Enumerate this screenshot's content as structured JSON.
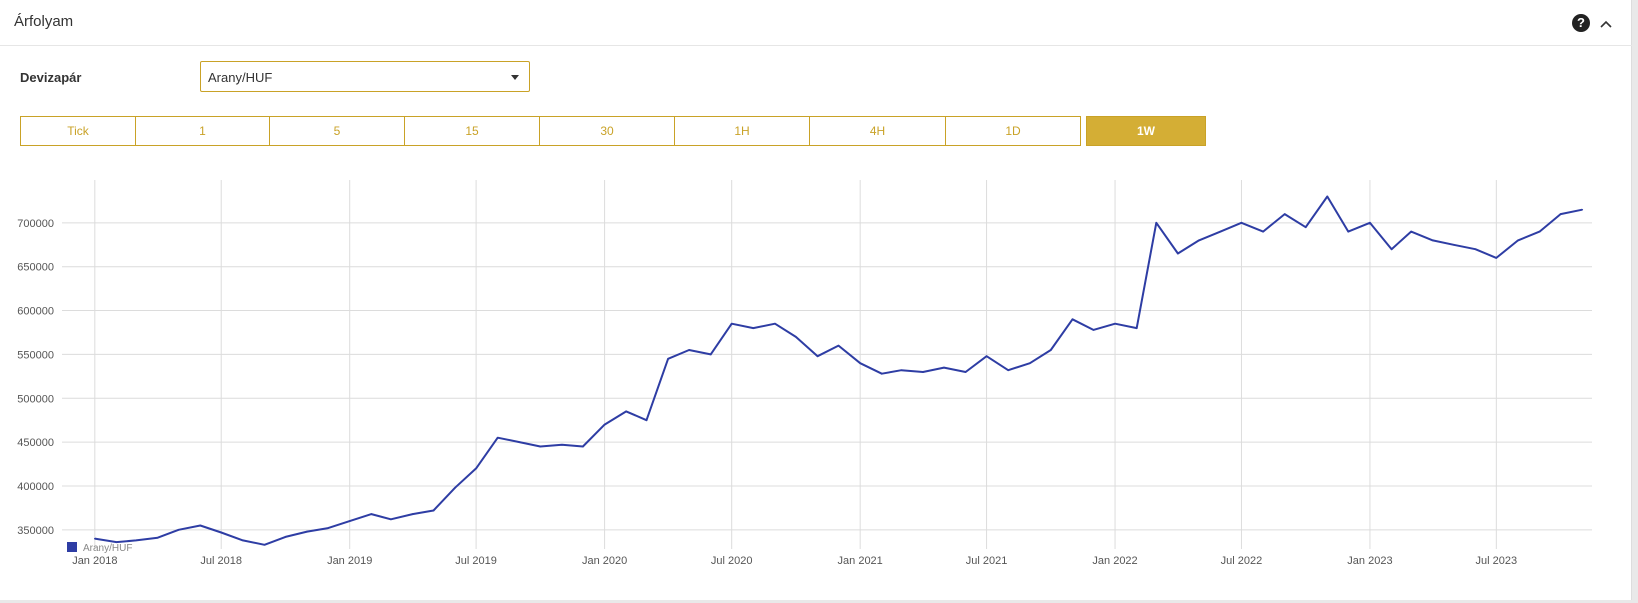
{
  "header": {
    "title": "Árfolyam",
    "help_icon": "question-circle-icon",
    "collapse_icon": "chevron-up-icon"
  },
  "pair": {
    "label": "Devizapár",
    "selected": "Arany/HUF"
  },
  "timeframes": {
    "items": [
      "Tick",
      "1",
      "5",
      "15",
      "30",
      "1H",
      "4H",
      "1D",
      "1W"
    ],
    "active": "1W"
  },
  "colors": {
    "accent": "#d4ae35",
    "line": "#2e3da4"
  },
  "chart_data": {
    "type": "line",
    "title": "",
    "xlabel": "",
    "ylabel": "",
    "x_ticks": [
      "Jan 2018",
      "Jul 2018",
      "Jan 2019",
      "Jul 2019",
      "Jan 2020",
      "Jul 2020",
      "Jan 2021",
      "Jul 2021",
      "Jan 2022",
      "Jul 2022",
      "Jan 2023",
      "Jul 2023"
    ],
    "y_ticks": [
      "350000",
      "400000",
      "450000",
      "500000",
      "550000",
      "600000",
      "650000",
      "700000"
    ],
    "ylim": [
      335000,
      742000
    ],
    "grid": true,
    "legend": {
      "position": "bottom-left",
      "entries": [
        "Arany/HUF"
      ]
    },
    "series": [
      {
        "name": "Arany/HUF",
        "x": [
          "2018-01-01",
          "2018-02-01",
          "2018-03-01",
          "2018-04-01",
          "2018-05-01",
          "2018-06-01",
          "2018-07-01",
          "2018-08-01",
          "2018-09-01",
          "2018-10-01",
          "2018-11-01",
          "2018-12-01",
          "2019-01-01",
          "2019-02-01",
          "2019-03-01",
          "2019-04-01",
          "2019-05-01",
          "2019-06-01",
          "2019-07-01",
          "2019-08-01",
          "2019-09-01",
          "2019-10-01",
          "2019-11-01",
          "2019-12-01",
          "2020-01-01",
          "2020-02-01",
          "2020-03-01",
          "2020-04-01",
          "2020-05-01",
          "2020-06-01",
          "2020-07-01",
          "2020-08-01",
          "2020-09-01",
          "2020-10-01",
          "2020-11-01",
          "2020-12-01",
          "2021-01-01",
          "2021-02-01",
          "2021-03-01",
          "2021-04-01",
          "2021-05-01",
          "2021-06-01",
          "2021-07-01",
          "2021-08-01",
          "2021-09-01",
          "2021-10-01",
          "2021-11-01",
          "2021-12-01",
          "2022-01-01",
          "2022-02-01",
          "2022-03-01",
          "2022-04-01",
          "2022-05-01",
          "2022-06-01",
          "2022-07-01",
          "2022-08-01",
          "2022-09-01",
          "2022-10-01",
          "2022-11-01",
          "2022-12-01",
          "2023-01-01",
          "2023-02-01",
          "2023-03-01",
          "2023-04-01",
          "2023-05-01",
          "2023-06-01",
          "2023-07-01",
          "2023-08-01",
          "2023-09-01",
          "2023-10-01",
          "2023-11-01"
        ],
        "values": [
          340000,
          336000,
          338000,
          341000,
          350000,
          355000,
          347000,
          338000,
          333000,
          342000,
          348000,
          352000,
          360000,
          368000,
          362000,
          368000,
          372000,
          398000,
          420000,
          455000,
          450000,
          445000,
          447000,
          445000,
          470000,
          485000,
          475000,
          545000,
          555000,
          550000,
          585000,
          580000,
          585000,
          570000,
          548000,
          560000,
          540000,
          528000,
          532000,
          530000,
          535000,
          530000,
          548000,
          532000,
          540000,
          555000,
          590000,
          578000,
          585000,
          580000,
          700000,
          665000,
          680000,
          690000,
          700000,
          690000,
          710000,
          695000,
          730000,
          690000,
          700000,
          670000,
          690000,
          680000,
          675000,
          670000,
          660000,
          680000,
          690000,
          710000,
          715000
        ]
      }
    ]
  }
}
